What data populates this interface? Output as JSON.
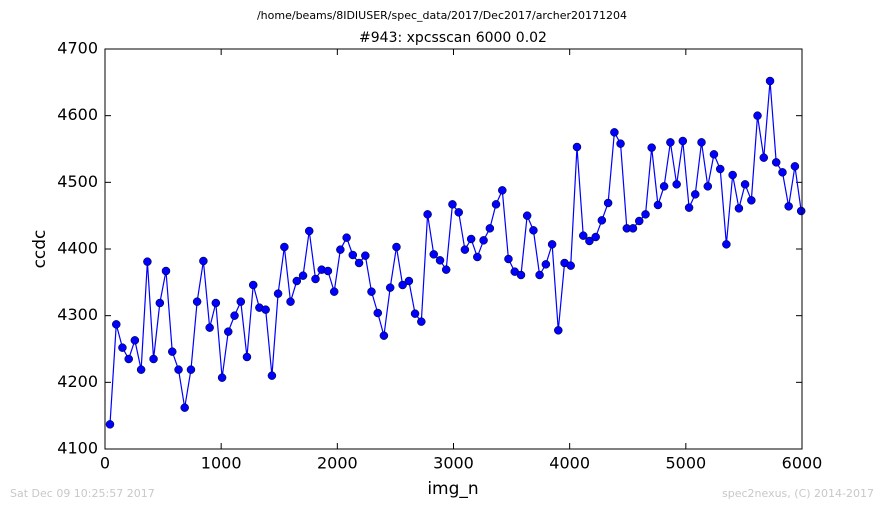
{
  "chart_data": {
    "type": "line",
    "suptitle": "/home/beams/8IDIUSER/spec_data/2017/Dec2017/archer20171204",
    "title": "#943: xpcsscan 6000 0.02",
    "xlabel": "img_n",
    "ylabel": "ccdc",
    "footer_left": "Sat Dec 09 10:25:57 2017",
    "footer_right": "spec2nexus, (C) 2014-2017",
    "xlim": [
      0,
      6000
    ],
    "xticks": [
      0,
      1000,
      2000,
      3000,
      4000,
      5000,
      6000
    ],
    "ylim": [
      4100,
      4700
    ],
    "yticks": [
      4100,
      4200,
      4300,
      4400,
      4500,
      4600,
      4700
    ],
    "x": [
      43,
      97,
      150,
      204,
      257,
      311,
      365,
      418,
      472,
      525,
      579,
      633,
      686,
      740,
      793,
      847,
      901,
      954,
      1008,
      1061,
      1115,
      1169,
      1222,
      1276,
      1329,
      1383,
      1437,
      1490,
      1544,
      1597,
      1651,
      1705,
      1758,
      1812,
      1865,
      1919,
      1973,
      2026,
      2080,
      2133,
      2187,
      2241,
      2294,
      2348,
      2401,
      2455,
      2509,
      2562,
      2616,
      2669,
      2723,
      2777,
      2830,
      2884,
      2937,
      2991,
      3045,
      3098,
      3152,
      3205,
      3259,
      3313,
      3366,
      3420,
      3473,
      3527,
      3581,
      3634,
      3688,
      3741,
      3795,
      3849,
      3902,
      3956,
      4009,
      4063,
      4117,
      4170,
      4224,
      4277,
      4331,
      4385,
      4438,
      4492,
      4545,
      4599,
      4653,
      4706,
      4760,
      4813,
      4867,
      4921,
      4974,
      5028,
      5081,
      5135,
      5189,
      5242,
      5296,
      5349,
      5403,
      5457,
      5510,
      5564,
      5617,
      5671,
      5725,
      5778,
      5832,
      5885,
      5939,
      5993
    ],
    "series": [
      {
        "color": "#0000ff",
        "values": [
          4137,
          4287,
          4252,
          4235,
          4263,
          4219,
          4381,
          4235,
          4319,
          4367,
          4246,
          4219,
          4162,
          4219,
          4321,
          4382,
          4282,
          4319,
          4207,
          4276,
          4300,
          4321,
          4238,
          4346,
          4312,
          4309,
          4210,
          4333,
          4403,
          4321,
          4352,
          4360,
          4427,
          4355,
          4369,
          4367,
          4336,
          4399,
          4417,
          4391,
          4379,
          4390,
          4336,
          4304,
          4270,
          4342,
          4403,
          4346,
          4352,
          4303,
          4291,
          4452,
          4392,
          4383,
          4369,
          4467,
          4455,
          4399,
          4415,
          4388,
          4413,
          4431,
          4467,
          4488,
          4385,
          4366,
          4361,
          4450,
          4428,
          4361,
          4377,
          4407,
          4278,
          4379,
          4375,
          4553,
          4420,
          4412,
          4418,
          4443,
          4469,
          4575,
          4558,
          4431,
          4431,
          4442,
          4452,
          4552,
          4466,
          4494,
          4560,
          4497,
          4562,
          4462,
          4482,
          4560,
          4494,
          4542,
          4520,
          4407,
          4511,
          4461,
          4497,
          4473,
          4600,
          4537,
          4652,
          4530,
          4515,
          4464,
          4524,
          4457
        ]
      }
    ]
  }
}
